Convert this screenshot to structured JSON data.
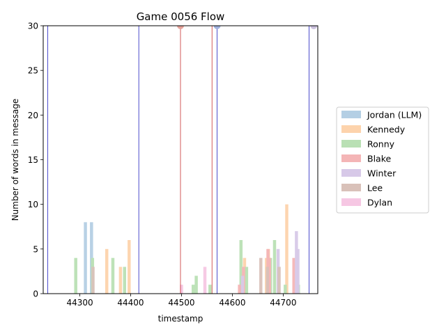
{
  "chart_data": {
    "type": "bar",
    "title": "Game 0056 Flow",
    "xlabel": "timestamp",
    "ylabel": "Number of words in message",
    "xlim": [
      44228,
      44768
    ],
    "ylim": [
      0,
      30
    ],
    "xticks": [
      44300,
      44400,
      44500,
      44600,
      44700
    ],
    "yticks": [
      0,
      5,
      10,
      15,
      20,
      25,
      30
    ],
    "legend_position": "right",
    "series": [
      {
        "name": "Jordan (LLM)",
        "color": "#b4cfe4",
        "points": [
          [
            44311,
            8
          ],
          [
            44323,
            8
          ]
        ]
      },
      {
        "name": "Kennedy",
        "color": "#fdd3ac",
        "points": [
          [
            44353,
            5
          ],
          [
            44380,
            3
          ],
          [
            44397,
            6
          ],
          [
            44624,
            4
          ],
          [
            44667,
            4
          ],
          [
            44671,
            5
          ],
          [
            44707,
            10
          ]
        ]
      },
      {
        "name": "Ronny",
        "color": "#b9e0b4",
        "points": [
          [
            44292,
            4
          ],
          [
            44325,
            4
          ],
          [
            44365,
            4
          ],
          [
            44388,
            3
          ],
          [
            44523,
            1
          ],
          [
            44529,
            2
          ],
          [
            44556,
            1
          ],
          [
            44617,
            6
          ],
          [
            44628,
            3
          ],
          [
            44675,
            4
          ],
          [
            44683,
            6
          ],
          [
            44704,
            1
          ],
          [
            44730,
            1
          ]
        ]
      },
      {
        "name": "Blake",
        "color": "#f4b5b6",
        "points": [
          [
            44614,
            1
          ],
          [
            44622,
            3
          ],
          [
            44670,
            5
          ],
          [
            44673,
            4
          ],
          [
            44721,
            4
          ]
        ]
      },
      {
        "name": "Winter",
        "color": "#d7c9e8",
        "points": [
          [
            44620,
            2
          ],
          [
            44690,
            5
          ],
          [
            44726,
            7
          ],
          [
            44729,
            5
          ]
        ]
      },
      {
        "name": "Lee",
        "color": "#d9c1b9",
        "points": [
          [
            44326,
            3
          ],
          [
            44656,
            4
          ],
          [
            44669,
            3
          ],
          [
            44692,
            3
          ]
        ]
      },
      {
        "name": "Dylan",
        "color": "#f6c7e3",
        "points": [
          [
            44500,
            1
          ],
          [
            44546,
            3
          ]
        ]
      }
    ],
    "event_lines": [
      {
        "x": 44237,
        "color": "#1f1fbf"
      },
      {
        "x": 44416,
        "color": "#1f1fbf"
      },
      {
        "x": 44570,
        "color": "#1f1fbf"
      },
      {
        "x": 44751,
        "color": "#1f1fbf"
      },
      {
        "x": 44498,
        "color": "#c73030"
      },
      {
        "x": 44560,
        "color": "#c73030"
      }
    ],
    "top_markers": [
      {
        "x": 44498,
        "color": "#e6a39a"
      },
      {
        "x": 44570,
        "color": "#9fb0dc"
      },
      {
        "x": 44760,
        "color": "#c9bfdc"
      }
    ]
  }
}
